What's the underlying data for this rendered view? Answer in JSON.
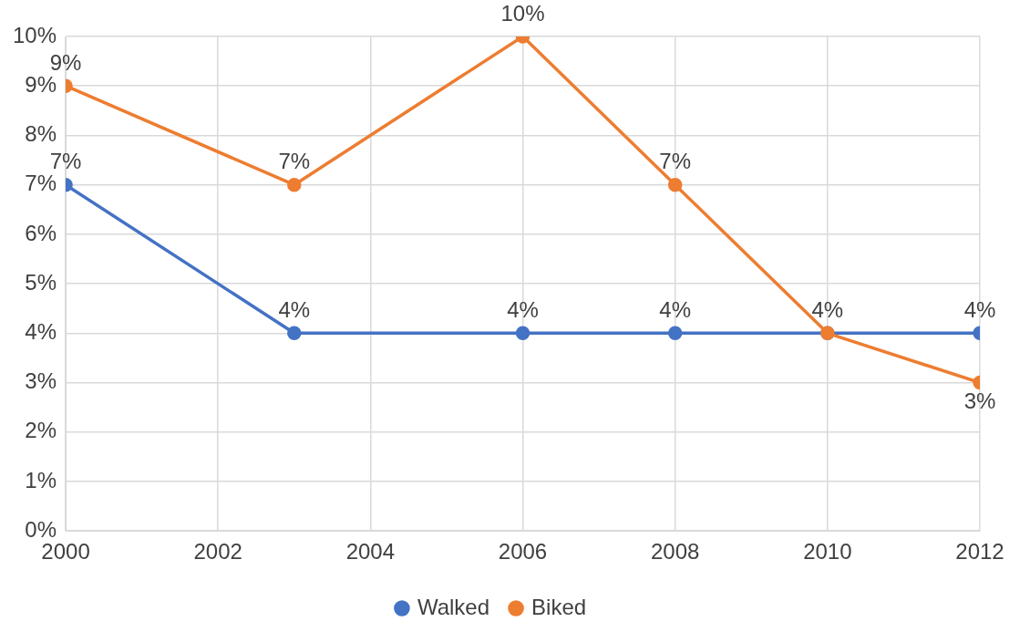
{
  "chart_data": {
    "type": "line",
    "x": [
      2000,
      2003,
      2006,
      2008,
      2010,
      2012
    ],
    "series": [
      {
        "name": "Walked",
        "color": "#4472c4",
        "values": [
          7,
          4,
          4,
          4,
          4,
          4
        ],
        "value_labels": [
          "7%",
          "4%",
          "4%",
          "4%",
          "4%",
          "4%"
        ]
      },
      {
        "name": "Biked",
        "color": "#ed7d31",
        "values": [
          9,
          7,
          10,
          7,
          4,
          3
        ],
        "value_labels": [
          "9%",
          "7%",
          "10%",
          "7%",
          null,
          "3%"
        ]
      }
    ],
    "xlim": [
      2000,
      2012
    ],
    "xticks": [
      2000,
      2002,
      2004,
      2006,
      2008,
      2010,
      2012
    ],
    "ylim": [
      0,
      10
    ],
    "yticks": [
      {
        "value": 0,
        "label": "0%"
      },
      {
        "value": 1,
        "label": "1%"
      },
      {
        "value": 2,
        "label": "2%"
      },
      {
        "value": 3,
        "label": "3%"
      },
      {
        "value": 4,
        "label": "4%"
      },
      {
        "value": 5,
        "label": "5%"
      },
      {
        "value": 6,
        "label": "6%"
      },
      {
        "value": 7,
        "label": "7%"
      },
      {
        "value": 8,
        "label": "8%"
      },
      {
        "value": 9,
        "label": "9%"
      },
      {
        "value": 10,
        "label": "10%"
      }
    ],
    "grid": true,
    "legend": "bottom",
    "marker": "circle",
    "line_style": "solid"
  }
}
